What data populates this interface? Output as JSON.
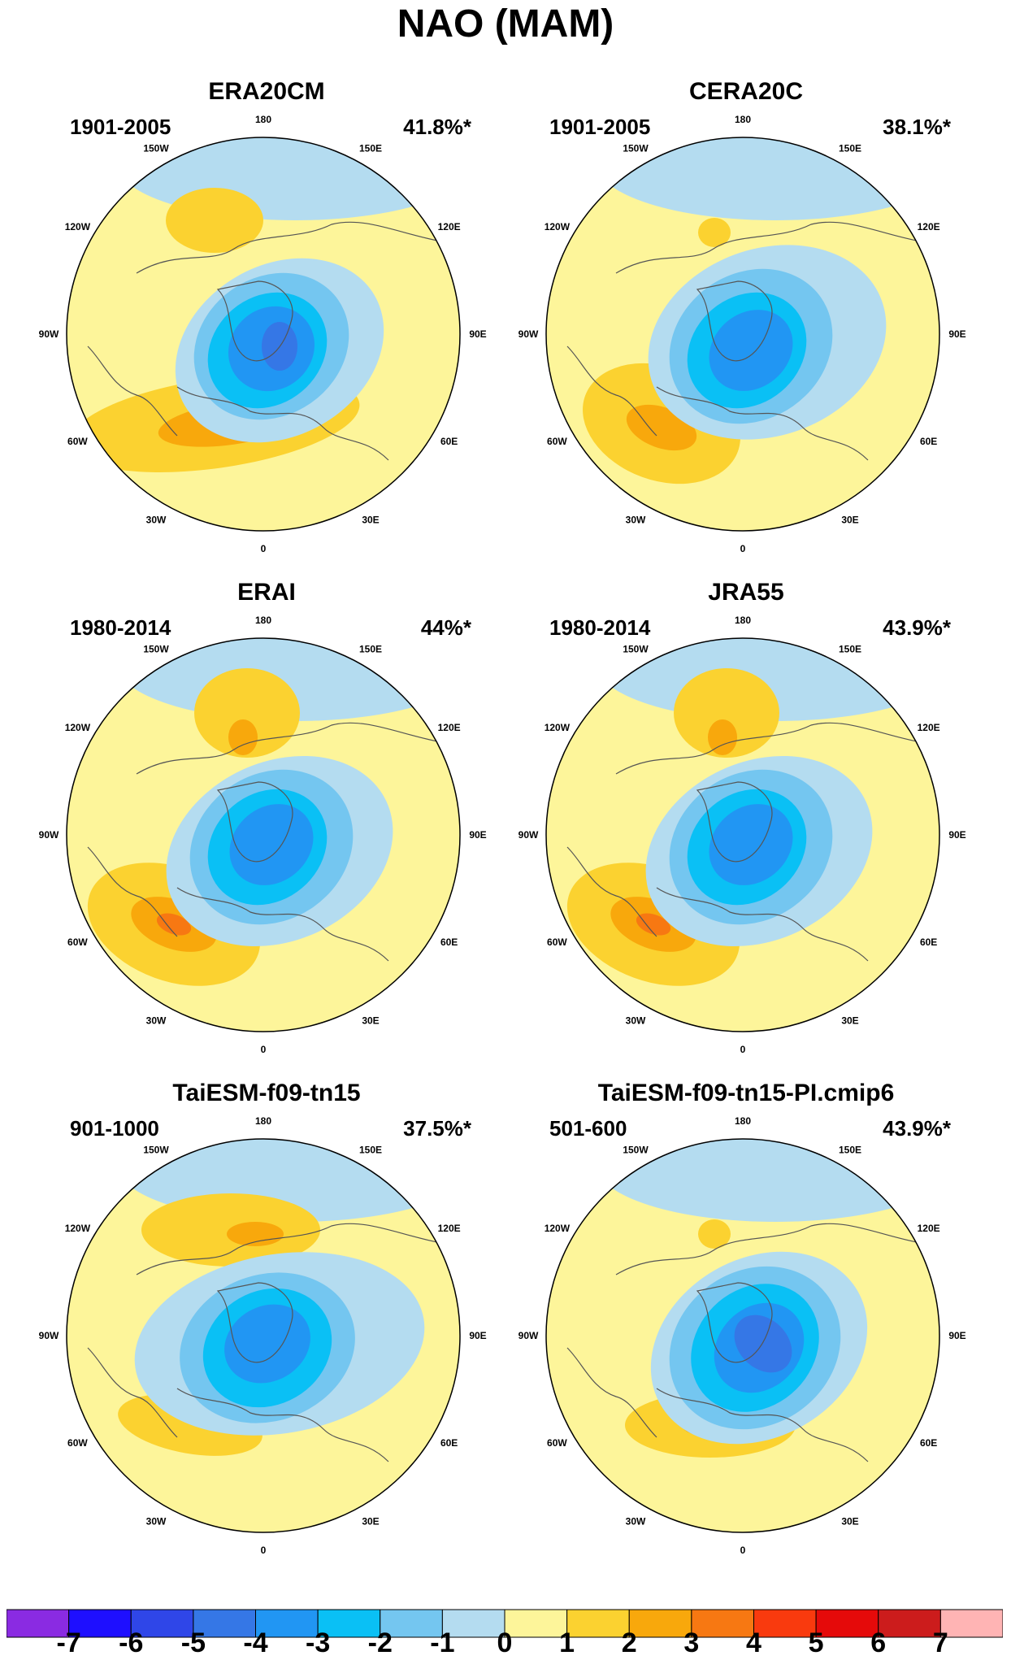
{
  "title": "NAO (MAM)",
  "panels": [
    {
      "name": "ERA20CM",
      "period": "1901-2005",
      "pct": "41.8%*",
      "variant": 0
    },
    {
      "name": "CERA20C",
      "period": "1901-2005",
      "pct": "38.1%*",
      "variant": 1
    },
    {
      "name": "ERAI",
      "period": "1980-2014",
      "pct": "44%*",
      "variant": 2
    },
    {
      "name": "JRA55",
      "period": "1980-2014",
      "pct": "43.9%*",
      "variant": 2
    },
    {
      "name": "TaiESM-f09-tn15",
      "period": "901-1000",
      "pct": "37.5%*",
      "variant": 3
    },
    {
      "name": "TaiESM-f09-tn15-PI.cmip6",
      "period": "501-600",
      "pct": "43.9%*",
      "variant": 4
    }
  ],
  "longitude_labels": [
    "180",
    "150E",
    "120E",
    "90E",
    "60E",
    "30E",
    "0",
    "30W",
    "60W",
    "90W",
    "120W",
    "150W"
  ],
  "colorbar": {
    "levels": [
      "-7",
      "-6",
      "-5",
      "-4",
      "-3",
      "-2",
      "-1",
      "0",
      "1",
      "2",
      "3",
      "4",
      "5",
      "6",
      "7"
    ],
    "colors": [
      "#8a2be2",
      "#1e0fff",
      "#2f46e8",
      "#3577e6",
      "#2196f3",
      "#0ac0f5",
      "#74c6f0",
      "#b4dcf0",
      "#fdf59a",
      "#fbd230",
      "#f8a80c",
      "#f77812",
      "#f93a0e",
      "#e50a0a",
      "#cc1c1c",
      "#ffb4b4"
    ]
  },
  "chart_data": {
    "type": "heatmap",
    "title": "NAO (MAM)",
    "projection": "north polar stereographic",
    "contour_levels": [
      -7,
      -6,
      -5,
      -4,
      -3,
      -2,
      -1,
      0,
      1,
      2,
      3,
      4,
      5,
      6,
      7
    ],
    "panels": [
      {
        "name": "ERA20CM",
        "period": "1901-2005",
        "explained_variance": "41.8%*",
        "min_approx": -5,
        "max_approx": 3
      },
      {
        "name": "CERA20C",
        "period": "1901-2005",
        "explained_variance": "38.1%*",
        "min_approx": -4,
        "max_approx": 3
      },
      {
        "name": "ERAI",
        "period": "1980-2014",
        "explained_variance": "44%*",
        "min_approx": -4,
        "max_approx": 3
      },
      {
        "name": "JRA55",
        "period": "1980-2014",
        "explained_variance": "43.9%*",
        "min_approx": -4,
        "max_approx": 3
      },
      {
        "name": "TaiESM-f09-tn15",
        "period": "901-1000",
        "explained_variance": "37.5%*",
        "min_approx": -4,
        "max_approx": 3
      },
      {
        "name": "TaiESM-f09-tn15-PI.cmip6",
        "period": "501-600",
        "explained_variance": "43.9%*",
        "min_approx": -5,
        "max_approx": 3
      }
    ]
  }
}
